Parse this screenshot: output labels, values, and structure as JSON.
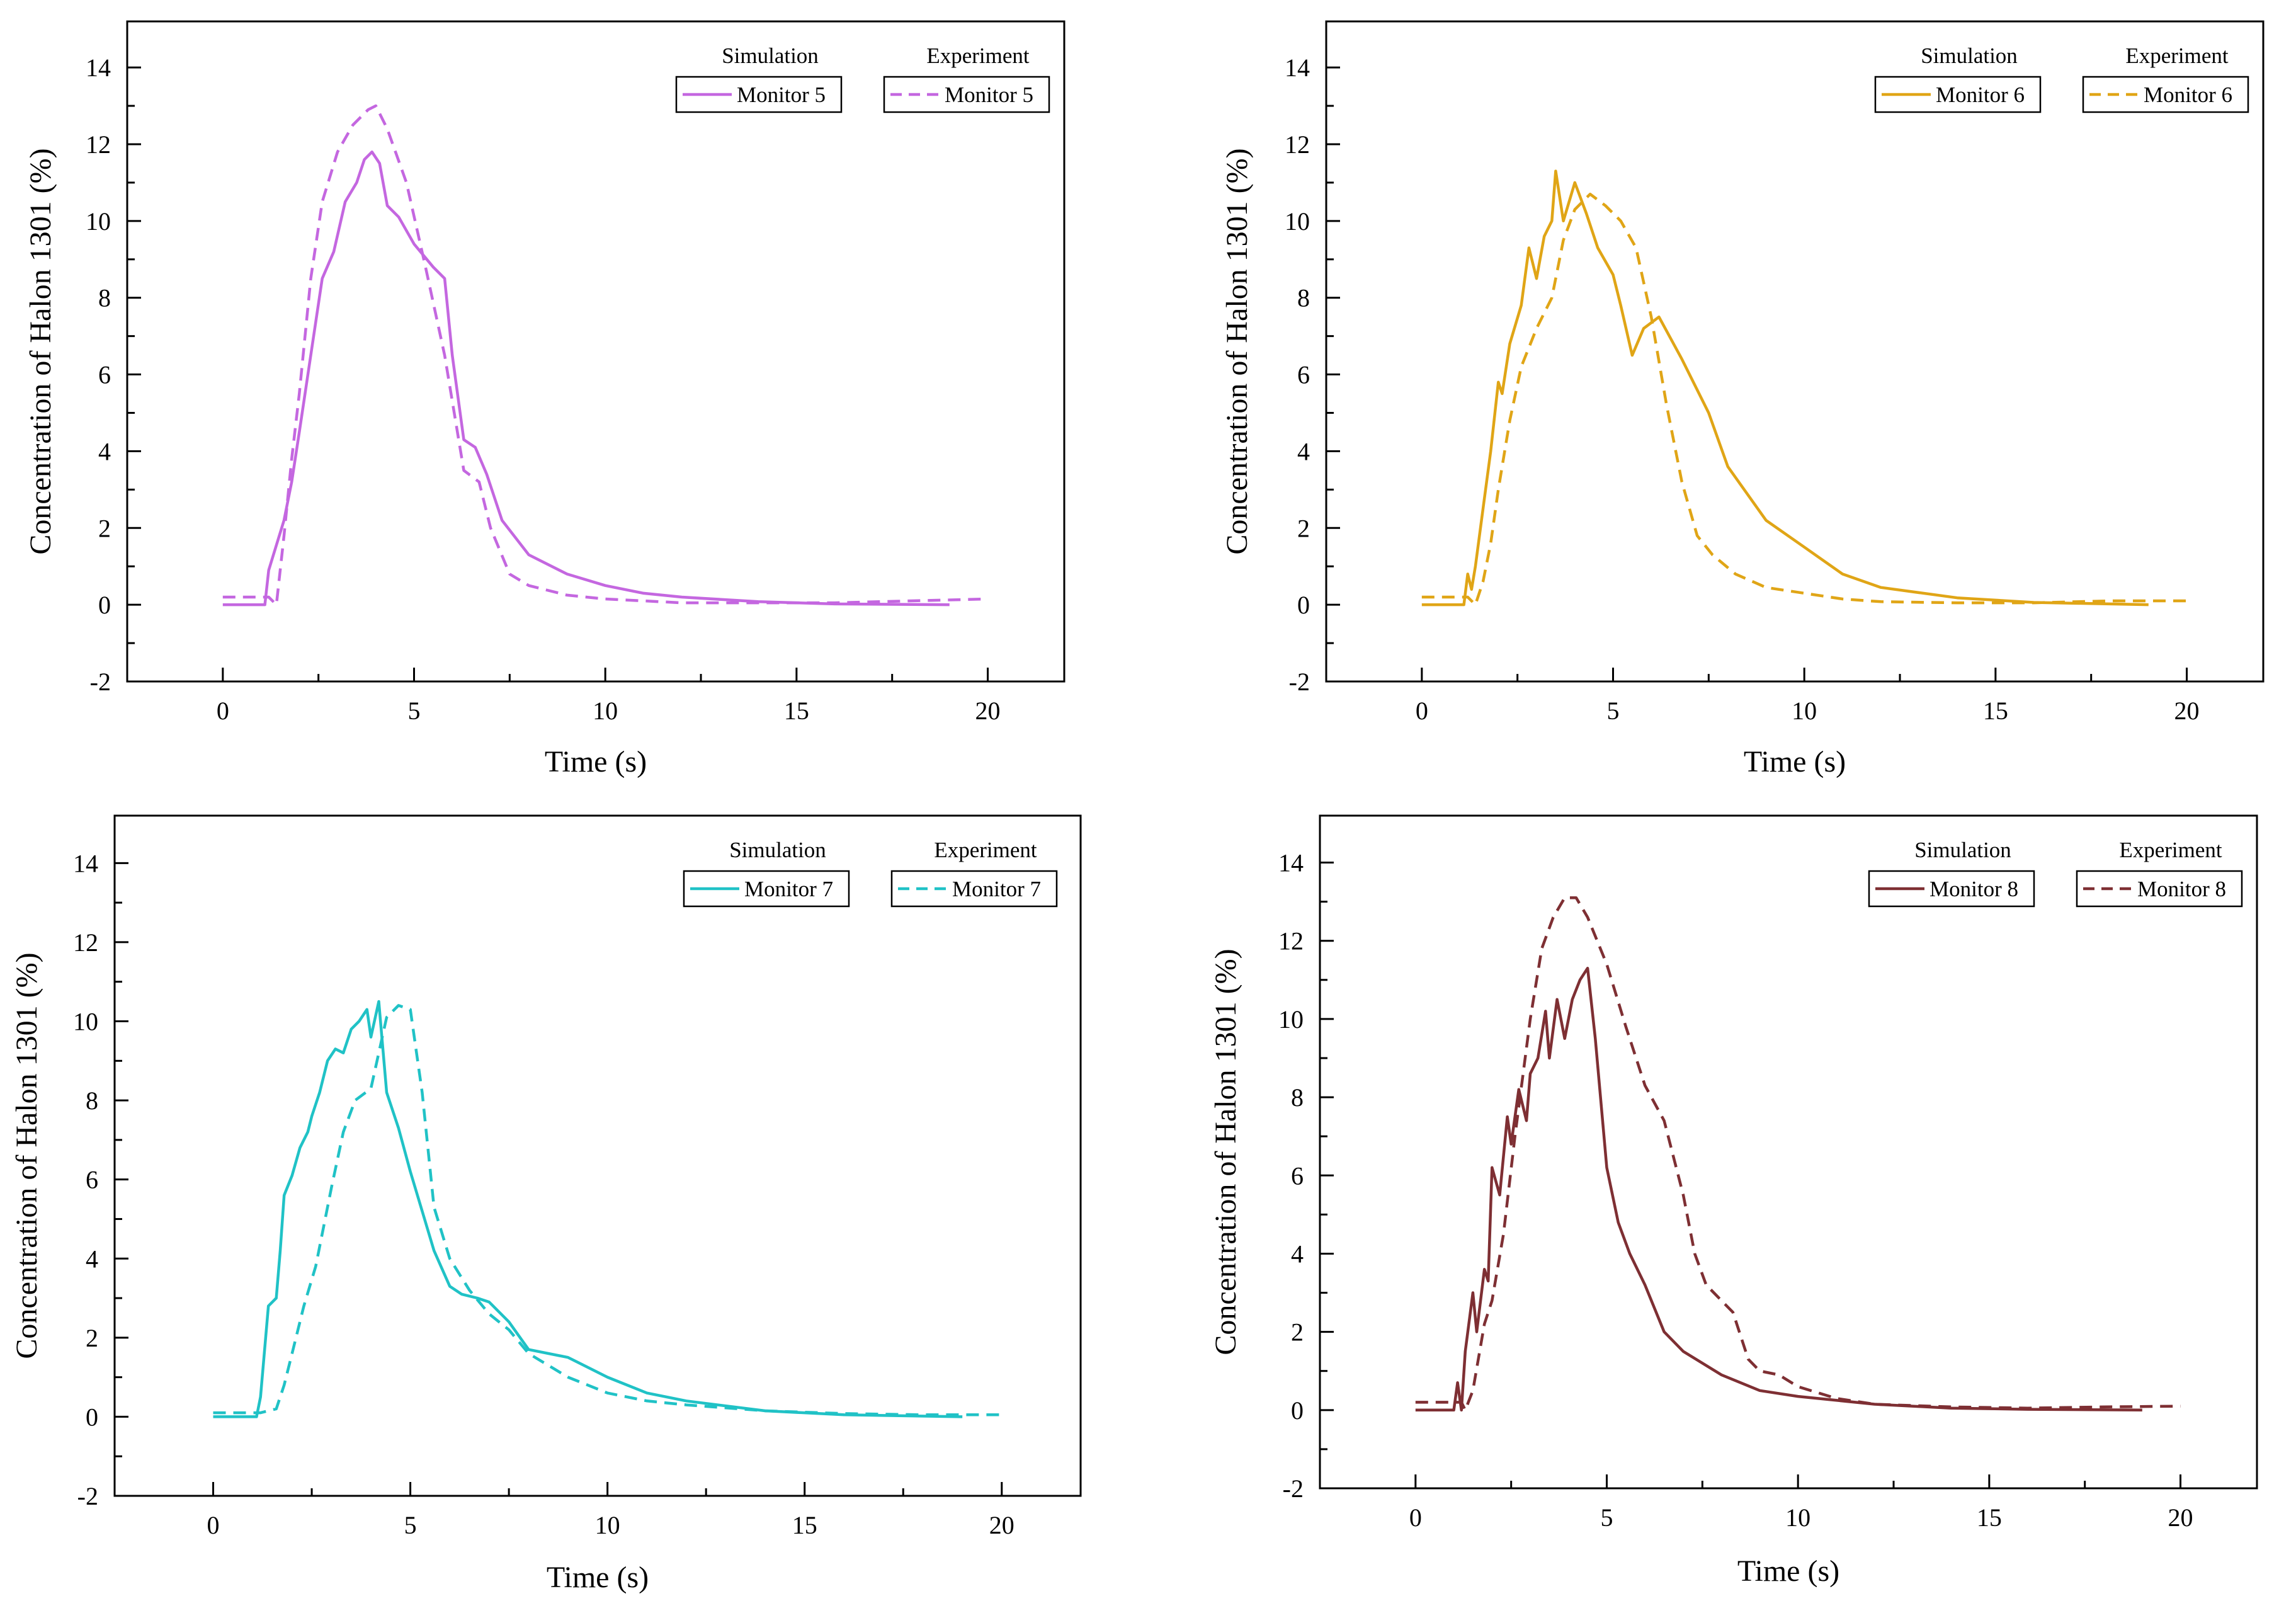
{
  "chart_data": [
    {
      "type": "line",
      "xlabel": "Time (s)",
      "ylabel": "Concentration of Halon 1301 (%)",
      "xlim": [
        -2.5,
        22
      ],
      "ylim": [
        -2,
        15.2
      ],
      "xticks": [
        0,
        5,
        10,
        15,
        20
      ],
      "yticks": [
        -2,
        0,
        2,
        4,
        6,
        8,
        10,
        12,
        14
      ],
      "legend_position": "top-right",
      "legend_headers": [
        "Simulation",
        "Experiment"
      ],
      "series": [
        {
          "name": "Monitor 5",
          "group": "Simulation",
          "style": "solid",
          "color": "#c467e0",
          "x": [
            0,
            1.1,
            1.2,
            1.6,
            1.8,
            2.0,
            2.3,
            2.6,
            2.9,
            3.2,
            3.5,
            3.7,
            3.9,
            4.1,
            4.3,
            4.6,
            5.0,
            5.5,
            5.8,
            6.0,
            6.3,
            6.6,
            6.9,
            7.3,
            8.0,
            9.0,
            10.0,
            11.0,
            12.0,
            14.0,
            16.0,
            19.0
          ],
          "y": [
            0.0,
            0.0,
            0.9,
            2.2,
            3.2,
            4.5,
            6.5,
            8.5,
            9.2,
            10.5,
            11.0,
            11.6,
            11.8,
            11.5,
            10.4,
            10.1,
            9.4,
            8.8,
            8.5,
            6.5,
            4.3,
            4.1,
            3.4,
            2.2,
            1.3,
            0.8,
            0.5,
            0.3,
            0.2,
            0.08,
            0.02,
            0.0
          ]
        },
        {
          "name": "Monitor 5",
          "group": "Experiment",
          "style": "dashed",
          "color": "#c467e0",
          "x": [
            0,
            1.2,
            1.4,
            1.6,
            1.8,
            2.0,
            2.3,
            2.6,
            3.0,
            3.4,
            3.8,
            4.0,
            4.3,
            4.8,
            5.3,
            5.8,
            6.3,
            6.7,
            7.0,
            7.5,
            8.0,
            9.0,
            10.0,
            11.0,
            12.0,
            14.0,
            16.0,
            18.0,
            20.0
          ],
          "y": [
            0.2,
            0.2,
            0.0,
            1.8,
            3.8,
            5.5,
            8.5,
            10.5,
            11.8,
            12.5,
            12.9,
            13.0,
            12.4,
            11.0,
            8.8,
            6.5,
            3.5,
            3.2,
            2.0,
            0.8,
            0.5,
            0.25,
            0.15,
            0.1,
            0.05,
            0.05,
            0.05,
            0.1,
            0.15
          ]
        },
        {
          "name": "Monitor 6",
          "group": "Simulation",
          "style": "solid",
          "color": "#e0a516",
          "x": [
            0,
            1.1,
            1.2,
            1.3,
            1.4,
            1.6,
            1.8,
            2.0,
            2.1,
            2.3,
            2.6,
            2.8,
            3.0,
            3.2,
            3.4,
            3.5,
            3.7,
            4.0,
            4.3,
            4.6,
            5.0,
            5.2,
            5.5,
            5.8,
            6.2,
            6.8,
            7.5,
            8.0,
            9.0,
            10.0,
            11.0,
            12.0,
            14.0,
            16.0,
            19.0
          ],
          "y": [
            0.0,
            0.0,
            0.8,
            0.4,
            1.0,
            2.5,
            4.0,
            5.8,
            5.5,
            6.8,
            7.8,
            9.3,
            8.5,
            9.6,
            10.0,
            11.3,
            10.0,
            11.0,
            10.2,
            9.3,
            8.6,
            7.8,
            6.5,
            7.2,
            7.5,
            6.4,
            5.0,
            3.6,
            2.2,
            1.5,
            0.8,
            0.45,
            0.18,
            0.06,
            0.0
          ]
        },
        {
          "name": "Monitor 6",
          "group": "Experiment",
          "style": "dashed",
          "color": "#e0a516",
          "x": [
            0,
            1.2,
            1.4,
            1.6,
            1.8,
            2.0,
            2.3,
            2.6,
            3.0,
            3.4,
            3.7,
            4.0,
            4.4,
            4.8,
            5.2,
            5.6,
            6.0,
            6.4,
            6.8,
            7.2,
            7.6,
            8.2,
            9.0,
            10.0,
            11.0,
            12.0,
            14.0,
            16.0,
            18.0,
            20.0
          ],
          "y": [
            0.2,
            0.2,
            0.0,
            0.6,
            1.6,
            3.0,
            4.8,
            6.2,
            7.2,
            8.0,
            9.5,
            10.3,
            10.7,
            10.4,
            10.0,
            9.3,
            7.5,
            5.2,
            3.2,
            1.8,
            1.3,
            0.8,
            0.45,
            0.3,
            0.15,
            0.08,
            0.05,
            0.05,
            0.1,
            0.1
          ]
        },
        {
          "name": "Monitor 7",
          "group": "Simulation",
          "style": "solid",
          "color": "#20c2c6",
          "x": [
            0,
            1.1,
            1.2,
            1.4,
            1.6,
            1.7,
            1.8,
            2.0,
            2.2,
            2.4,
            2.5,
            2.7,
            2.9,
            3.1,
            3.3,
            3.5,
            3.7,
            3.9,
            4.0,
            4.2,
            4.4,
            4.7,
            5.0,
            5.3,
            5.6,
            6.0,
            6.3,
            6.7,
            7.0,
            7.5,
            8.0,
            9.0,
            10.0,
            11.0,
            12.0,
            14.0,
            16.0,
            19.0
          ],
          "y": [
            0.0,
            0.0,
            0.5,
            2.8,
            3.0,
            4.2,
            5.6,
            6.1,
            6.8,
            7.2,
            7.6,
            8.2,
            9.0,
            9.3,
            9.2,
            9.8,
            10.0,
            10.3,
            9.6,
            10.5,
            8.2,
            7.3,
            6.2,
            5.2,
            4.2,
            3.3,
            3.1,
            3.0,
            2.9,
            2.4,
            1.7,
            1.5,
            1.0,
            0.6,
            0.4,
            0.15,
            0.05,
            0.0
          ]
        },
        {
          "name": "Monitor 7",
          "group": "Experiment",
          "style": "dashed",
          "color": "#20c2c6",
          "x": [
            0,
            1.2,
            1.6,
            1.8,
            2.0,
            2.3,
            2.6,
            3.0,
            3.3,
            3.6,
            4.0,
            4.4,
            4.7,
            5.0,
            5.3,
            5.6,
            6.0,
            6.5,
            7.0,
            7.5,
            8.0,
            9.0,
            10.0,
            11.0,
            12.0,
            14.0,
            16.0,
            18.0,
            20.0
          ],
          "y": [
            0.1,
            0.1,
            0.2,
            0.8,
            1.6,
            2.8,
            3.8,
            5.8,
            7.2,
            8.0,
            8.3,
            10.1,
            10.4,
            10.3,
            8.2,
            5.3,
            4.0,
            3.2,
            2.6,
            2.2,
            1.6,
            1.0,
            0.6,
            0.4,
            0.3,
            0.15,
            0.08,
            0.05,
            0.05
          ]
        },
        {
          "name": "Monitor 8",
          "group": "Simulation",
          "style": "solid",
          "color": "#7e2f33",
          "x": [
            0,
            1.0,
            1.1,
            1.2,
            1.3,
            1.5,
            1.6,
            1.8,
            1.9,
            2.0,
            2.2,
            2.4,
            2.5,
            2.7,
            2.9,
            3.0,
            3.2,
            3.4,
            3.5,
            3.7,
            3.9,
            4.1,
            4.3,
            4.5,
            4.7,
            5.0,
            5.3,
            5.6,
            6.0,
            6.5,
            7.0,
            8.0,
            9.0,
            10.0,
            11.0,
            12.0,
            14.0,
            16.0,
            19.0
          ],
          "y": [
            0.0,
            0.0,
            0.7,
            0.0,
            1.5,
            3.0,
            2.0,
            3.6,
            3.3,
            6.2,
            5.5,
            7.5,
            6.8,
            8.2,
            7.4,
            8.6,
            9.0,
            10.2,
            9.0,
            10.5,
            9.5,
            10.5,
            11.0,
            11.3,
            9.5,
            6.2,
            4.8,
            4.0,
            3.2,
            2.0,
            1.5,
            0.9,
            0.5,
            0.35,
            0.25,
            0.15,
            0.05,
            0.02,
            0.0
          ]
        },
        {
          "name": "Monitor 8",
          "group": "Experiment",
          "style": "dashed",
          "color": "#7e2f33",
          "x": [
            0,
            1.2,
            1.3,
            1.5,
            1.8,
            2.0,
            2.3,
            2.6,
            3.0,
            3.3,
            3.6,
            3.9,
            4.2,
            4.5,
            5.0,
            5.5,
            6.0,
            6.5,
            7.0,
            7.3,
            7.6,
            8.0,
            8.3,
            8.7,
            9.0,
            9.5,
            10.0,
            11.0,
            12.0,
            14.0,
            16.0,
            18.0,
            20.0
          ],
          "y": [
            0.2,
            0.2,
            0.0,
            0.5,
            2.2,
            2.8,
            4.5,
            7.0,
            10.0,
            11.8,
            12.6,
            13.1,
            13.1,
            12.6,
            11.4,
            9.8,
            8.3,
            7.4,
            5.5,
            4.0,
            3.2,
            2.8,
            2.5,
            1.3,
            1.0,
            0.9,
            0.6,
            0.3,
            0.15,
            0.08,
            0.05,
            0.08,
            0.1
          ]
        }
      ]
    }
  ]
}
